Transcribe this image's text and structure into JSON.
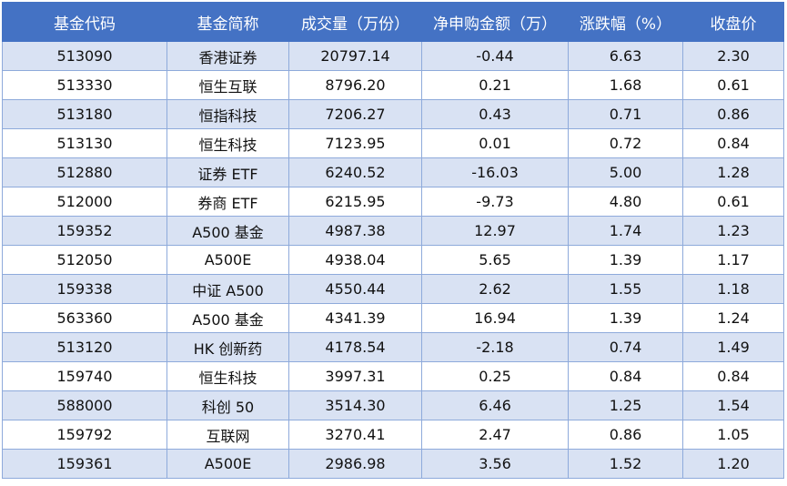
{
  "table": {
    "headers": [
      "基金代码",
      "基金简称",
      "成交量（万份）",
      "净申购金额（万）",
      "涨跌幅（%）",
      "收盘价"
    ],
    "rows": [
      [
        "513090",
        "香港证券",
        "20797.14",
        "-0.44",
        "6.63",
        "2.30"
      ],
      [
        "513330",
        "恒生互联",
        "8796.20",
        "0.21",
        "1.68",
        "0.61"
      ],
      [
        "513180",
        "恒指科技",
        "7206.27",
        "0.43",
        "0.71",
        "0.86"
      ],
      [
        "513130",
        "恒生科技",
        "7123.95",
        "0.01",
        "0.72",
        "0.84"
      ],
      [
        "512880",
        "证券 ETF",
        "6240.52",
        "-16.03",
        "5.00",
        "1.28"
      ],
      [
        "512000",
        "券商 ETF",
        "6215.95",
        "-9.73",
        "4.80",
        "0.61"
      ],
      [
        "159352",
        "A500 基金",
        "4987.38",
        "12.97",
        "1.74",
        "1.23"
      ],
      [
        "512050",
        "A500E",
        "4938.04",
        "5.65",
        "1.39",
        "1.17"
      ],
      [
        "159338",
        "中证 A500",
        "4550.44",
        "2.62",
        "1.55",
        "1.18"
      ],
      [
        "563360",
        "A500 基金",
        "4341.39",
        "16.94",
        "1.39",
        "1.24"
      ],
      [
        "513120",
        "HK 创新药",
        "4178.54",
        "-2.18",
        "0.74",
        "1.49"
      ],
      [
        "159740",
        "恒生科技",
        "3997.31",
        "0.25",
        "0.84",
        "0.84"
      ],
      [
        "588000",
        "科创 50",
        "3514.30",
        "6.46",
        "1.25",
        "1.54"
      ],
      [
        "159792",
        "互联网",
        "3270.41",
        "2.47",
        "0.86",
        "1.05"
      ],
      [
        "159361",
        "A500E",
        "2986.98",
        "3.56",
        "1.52",
        "1.20"
      ]
    ]
  },
  "colors": {
    "header_bg": "#4472c4",
    "header_text": "#ffffff",
    "stripe_bg": "#d9e2f3",
    "border": "#8eaadb"
  }
}
